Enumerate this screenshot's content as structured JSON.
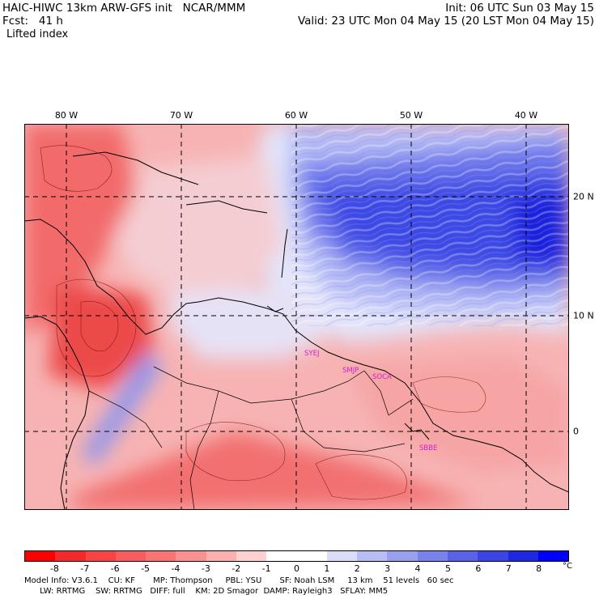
{
  "header": {
    "model_line": "HAIC-HIWC 13km ARW-GFS init   NCAR/MMM",
    "init_line": "Init: 06 UTC Sun 03 May 15",
    "forecast_line": "Fcst:   41 h",
    "valid_line": "Valid: 23 UTC Mon 04 May 15 (20 LST Mon 04 May 15)",
    "field_name": "Lifted index"
  },
  "map": {
    "longitude_labels": [
      "80 W",
      "70 W",
      "60 W",
      "50 W",
      "40 W"
    ],
    "latitude_labels": [
      "20 N",
      "10 N",
      "0"
    ],
    "station_labels": [
      "SYEJ",
      "SMJP",
      "SOCA",
      "SBBE"
    ],
    "colors": {
      "unstable": "#e8202a",
      "stable": "#1f2de0",
      "neutral": "#ffffff",
      "grid": "#000000",
      "station": "#d020d0"
    }
  },
  "colorbar": {
    "tick_labels": [
      "-8",
      "-7",
      "-6",
      "-5",
      "-4",
      "-3",
      "-2",
      "-1",
      "0",
      "1",
      "2",
      "3",
      "4",
      "5",
      "6",
      "7",
      "8"
    ],
    "unit": "°C",
    "colors": [
      "#ff0000",
      "#f42a2a",
      "#f84444",
      "#f95c5c",
      "#fa7474",
      "#fb9090",
      "#fdb0b0",
      "#ffd0d0",
      "#ffffff",
      "#ffffff",
      "#dadcf8",
      "#b8bdf4",
      "#9aa0f0",
      "#7a82ec",
      "#5a63e8",
      "#3a45e4",
      "#1e28e0",
      "#0000ff"
    ]
  },
  "footer": {
    "line1": "Model Info: V3.6.1    CU: KF       MP: Thompson     PBL: YSU       SF: Noah LSM     13 km    51 levels   60 sec",
    "line2": "      LW: RRTMG    SW: RRTMG   DIFF: full    KM: 2D Smagor  DAMP: Rayleigh3   SFLAY: MM5"
  }
}
